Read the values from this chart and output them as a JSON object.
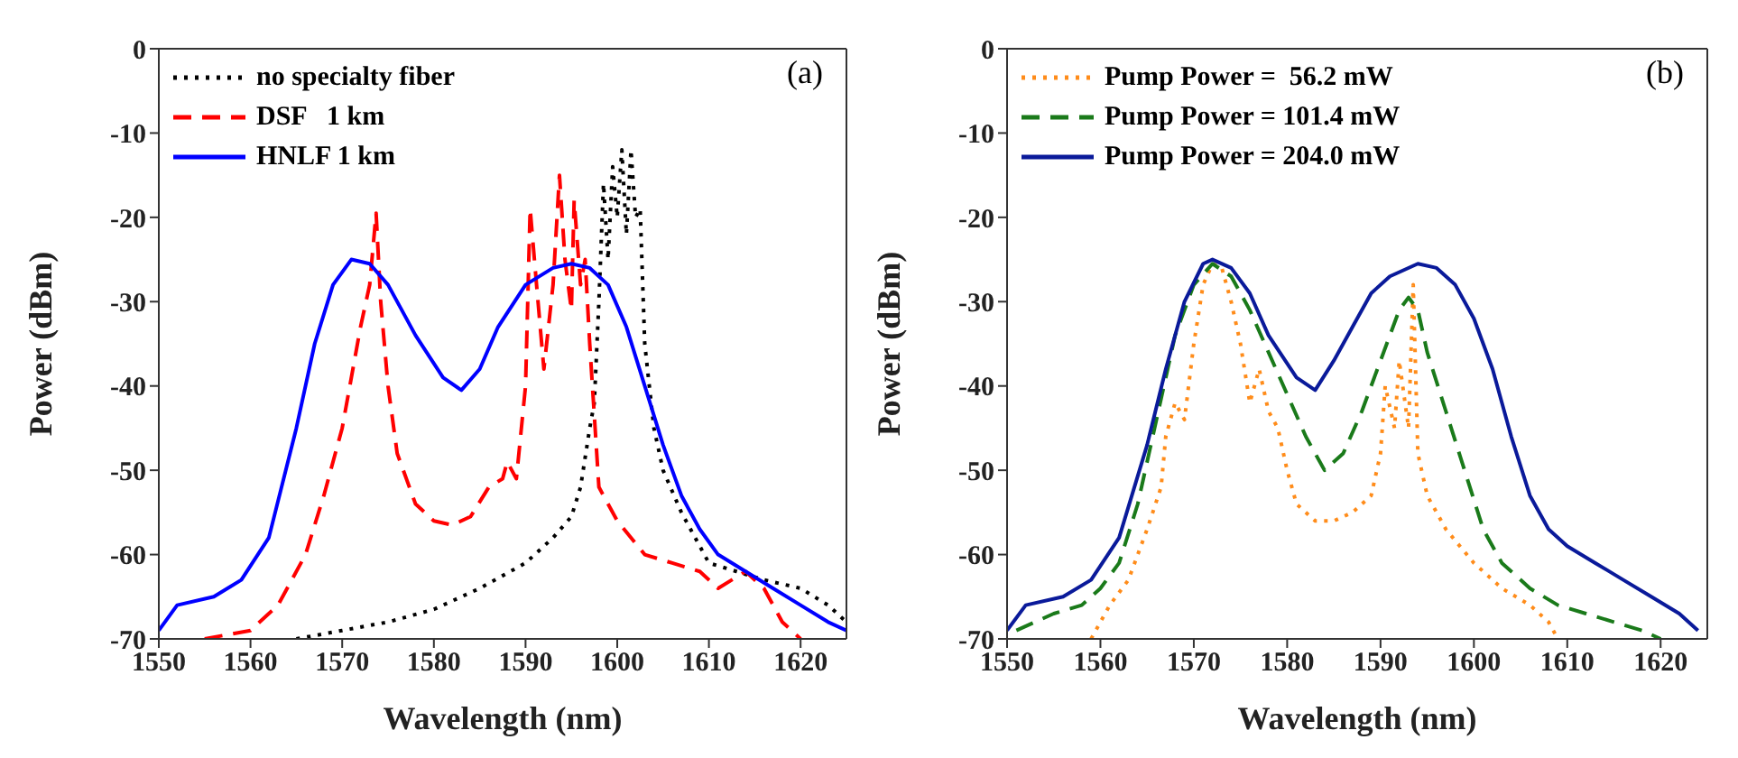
{
  "chart_data": [
    {
      "type": "line",
      "xlabel": "Wavelength (nm)",
      "ylabel": "Power (dBm)",
      "annotations": [
        "(a)"
      ],
      "xlim": [
        1550,
        1625
      ],
      "xticks": [
        1550,
        1560,
        1570,
        1580,
        1590,
        1600,
        1610,
        1620
      ],
      "ylim": [
        -70,
        0
      ],
      "yticks": [
        0,
        -10,
        -20,
        -30,
        -40,
        -50,
        -60,
        -70
      ],
      "grid": false,
      "legend": "top left",
      "marker": "none",
      "series": [
        {
          "name": "no specialty fiber",
          "color": "#000000",
          "line_style": "dotted",
          "x": [
            1565,
            1570,
            1575,
            1580,
            1585,
            1590,
            1593,
            1595,
            1596,
            1597,
            1597.5,
            1598,
            1598.5,
            1599,
            1599.5,
            1600,
            1600.5,
            1601,
            1601.5,
            1602,
            1602.5,
            1603,
            1604,
            1605,
            1607,
            1610,
            1613,
            1616,
            1620,
            1623,
            1625
          ],
          "values": [
            -70,
            -69,
            -68,
            -66.5,
            -64,
            -61,
            -58,
            -55.5,
            -52,
            -45,
            -42,
            -30,
            -16,
            -25,
            -14,
            -20,
            -12,
            -22,
            -12,
            -20,
            -19,
            -35,
            -45,
            -50,
            -55,
            -61,
            -62,
            -63,
            -64,
            -66,
            -68
          ]
        },
        {
          "name": "DSF   1 km",
          "color": "#ff0000",
          "line_style": "dashed",
          "x": [
            1555,
            1560,
            1563,
            1566,
            1568,
            1570,
            1572,
            1573,
            1573.7,
            1574.2,
            1575,
            1576,
            1578,
            1580,
            1582,
            1584,
            1586,
            1587.5,
            1588,
            1589,
            1590,
            1590.5,
            1591.2,
            1592,
            1593,
            1593.7,
            1594.3,
            1595,
            1595.3,
            1596,
            1596.5,
            1597,
            1598,
            1599,
            1600,
            1603,
            1606,
            1609,
            1611,
            1614,
            1616,
            1618,
            1620
          ],
          "values": [
            -70,
            -69,
            -66,
            -60,
            -53,
            -45,
            -33,
            -28,
            -19.5,
            -30,
            -40,
            -48,
            -54,
            -56,
            -56.5,
            -55.5,
            -52,
            -51,
            -49,
            -51,
            -40,
            -19,
            -28,
            -38,
            -28,
            -15,
            -25,
            -31,
            -18,
            -28,
            -25,
            -35,
            -52,
            -54,
            -56,
            -60,
            -61,
            -62,
            -64,
            -62,
            -64,
            -68,
            -70
          ]
        },
        {
          "name": "HNLF 1 km",
          "color": "#0000ff",
          "line_style": "solid",
          "x": [
            1550,
            1552,
            1556,
            1559,
            1562,
            1565,
            1567,
            1569,
            1571,
            1573,
            1575,
            1578,
            1581,
            1583,
            1585,
            1587,
            1590,
            1593,
            1595,
            1597,
            1599,
            1601,
            1603,
            1605,
            1607,
            1609,
            1611,
            1614,
            1617,
            1620,
            1623,
            1625
          ],
          "values": [
            -69,
            -66,
            -65,
            -63,
            -58,
            -45,
            -35,
            -28,
            -25,
            -25.5,
            -28,
            -34,
            -39,
            -40.5,
            -38,
            -33,
            -28,
            -26,
            -25.5,
            -26,
            -28,
            -33,
            -40,
            -47,
            -53,
            -57,
            -60,
            -62,
            -64,
            -66,
            -68,
            -69
          ]
        }
      ]
    },
    {
      "type": "line",
      "xlabel": "Wavelength (nm)",
      "ylabel": "Power (dBm)",
      "annotations": [
        "(b)"
      ],
      "xlim": [
        1550,
        1625
      ],
      "xticks": [
        1550,
        1560,
        1570,
        1580,
        1590,
        1600,
        1610,
        1620
      ],
      "ylim": [
        -70,
        0
      ],
      "yticks": [
        0,
        -10,
        -20,
        -30,
        -40,
        -50,
        -60,
        -70
      ],
      "grid": false,
      "legend": "top left",
      "marker": "none",
      "series": [
        {
          "name": "Pump Power =  56.2 mW",
          "color": "#ff8c1a",
          "line_style": "dotted",
          "x": [
            1559,
            1561,
            1563,
            1565,
            1566.5,
            1567,
            1568,
            1569,
            1570,
            1571,
            1572,
            1573,
            1574,
            1575,
            1576,
            1577,
            1578,
            1579,
            1580,
            1581,
            1583,
            1585,
            1587,
            1589,
            1590,
            1590.5,
            1591.5,
            1592,
            1593,
            1593.5,
            1594,
            1595,
            1597,
            1600,
            1603,
            1606,
            1608,
            1609
          ],
          "values": [
            -70,
            -66,
            -63,
            -57,
            -52,
            -46,
            -42,
            -44,
            -35,
            -28,
            -25.5,
            -26,
            -30,
            -35,
            -42,
            -38,
            -43,
            -45,
            -50,
            -54,
            -56,
            -56,
            -55,
            -53,
            -48,
            -40,
            -45,
            -37,
            -45,
            -28,
            -48,
            -53,
            -57,
            -61,
            -64,
            -66,
            -68,
            -70
          ]
        },
        {
          "name": "Pump Power = 101.4 mW",
          "color": "#1a7a1a",
          "line_style": "dashed",
          "x": [
            1551,
            1555,
            1558,
            1560,
            1562,
            1564,
            1566,
            1568,
            1570,
            1572,
            1574,
            1576,
            1578,
            1580,
            1582,
            1584,
            1586,
            1588,
            1590,
            1592,
            1593,
            1594,
            1595,
            1597,
            1599,
            1601,
            1603,
            1606,
            1609,
            1612,
            1615,
            1618,
            1620
          ],
          "values": [
            -69,
            -67,
            -66,
            -64,
            -61,
            -54,
            -44,
            -34,
            -28,
            -25.5,
            -27,
            -31,
            -36,
            -41,
            -46,
            -50,
            -48,
            -43,
            -37,
            -31,
            -29.5,
            -31,
            -36,
            -43,
            -50,
            -57,
            -61,
            -64,
            -66,
            -67,
            -68,
            -69,
            -70
          ]
        },
        {
          "name": "Pump Power = 204.0 mW",
          "color": "#0a1a9a",
          "line_style": "solid",
          "x": [
            1550,
            1552,
            1556,
            1559,
            1562,
            1565,
            1567,
            1569,
            1571,
            1572,
            1574,
            1576,
            1578,
            1581,
            1583,
            1585,
            1587,
            1589,
            1591,
            1594,
            1596,
            1598,
            1600,
            1602,
            1604,
            1606,
            1608,
            1610,
            1613,
            1616,
            1619,
            1622,
            1624
          ],
          "values": [
            -69,
            -66,
            -65,
            -63,
            -58,
            -47,
            -38,
            -30,
            -25.5,
            -25,
            -26,
            -29,
            -34,
            -39,
            -40.5,
            -37,
            -33,
            -29,
            -27,
            -25.5,
            -26,
            -28,
            -32,
            -38,
            -46,
            -53,
            -57,
            -59,
            -61,
            -63,
            -65,
            -67,
            -69
          ]
        }
      ]
    }
  ]
}
